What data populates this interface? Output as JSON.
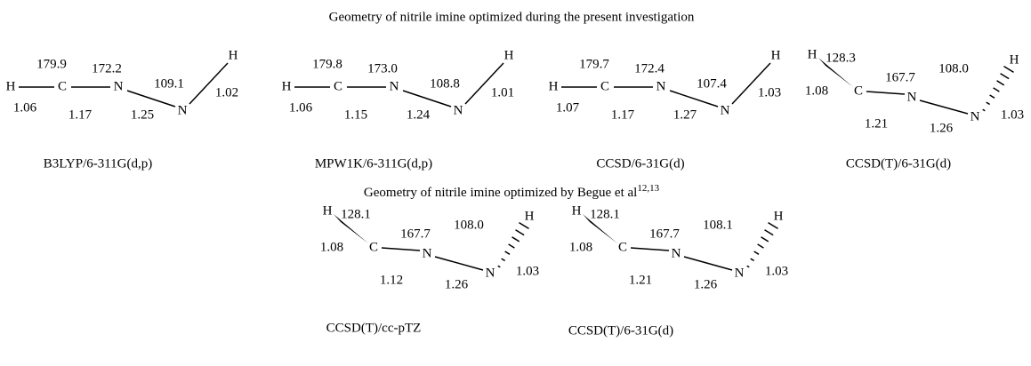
{
  "headings": [
    {
      "text": "Geometry of nitrile imine optimized during the present investigation"
    },
    {
      "text": "Geometry of nitrile imine optimized by Begue et al",
      "sup": "12,13"
    }
  ],
  "structures": [
    {
      "method": "B3LYP/6-311G(d,p)",
      "atoms": [
        "H",
        "C",
        "N",
        "N",
        "H"
      ],
      "angles": [
        "179.9",
        "172.2",
        "109.1"
      ],
      "bonds": [
        "1.06",
        "1.17",
        "1.25",
        "1.02"
      ]
    },
    {
      "method": "MPW1K/6-311G(d,p)",
      "atoms": [
        "H",
        "C",
        "N",
        "N",
        "H"
      ],
      "angles": [
        "179.8",
        "173.0",
        "108.8"
      ],
      "bonds": [
        "1.06",
        "1.15",
        "1.24",
        "1.01"
      ]
    },
    {
      "method": "CCSD/6-31G(d)",
      "atoms": [
        "H",
        "C",
        "N",
        "N",
        "H"
      ],
      "angles": [
        "179.7",
        "172.4",
        "107.4"
      ],
      "bonds": [
        "1.07",
        "1.17",
        "1.27",
        "1.03"
      ]
    },
    {
      "method": "CCSD(T)/6-31G(d)",
      "atoms": [
        "H",
        "C",
        "N",
        "N",
        "H"
      ],
      "angles": [
        "128.3",
        "167.7",
        "108.0"
      ],
      "bonds": [
        "1.08",
        "1.21",
        "1.26",
        "1.03"
      ]
    },
    {
      "method": "CCSD(T)/cc-pTZ",
      "atoms": [
        "H",
        "C",
        "N",
        "N",
        "H"
      ],
      "angles": [
        "128.1",
        "167.7",
        "108.0"
      ],
      "bonds": [
        "1.08",
        "1.12",
        "1.26",
        "1.03"
      ]
    },
    {
      "method": "CCSD(T)/6-31G(d)",
      "atoms": [
        "H",
        "C",
        "N",
        "N",
        "H"
      ],
      "angles": [
        "128.1",
        "167.7",
        "108.1"
      ],
      "bonds": [
        "1.08",
        "1.21",
        "1.26",
        "1.03"
      ]
    }
  ]
}
